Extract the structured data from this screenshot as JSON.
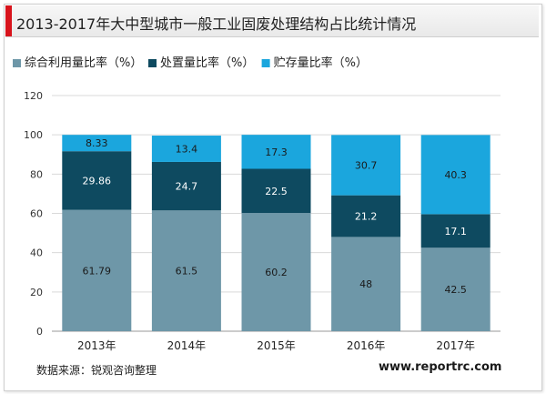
{
  "title": "2013-2017年大中型城市一般工业固废处理结构占比统计情况",
  "source": "数据来源：锐观咨询整理",
  "website": "www.reportrc.com",
  "chart_data": {
    "type": "bar",
    "stacked": true,
    "categories": [
      "2013年",
      "2014年",
      "2015年",
      "2016年",
      "2017年"
    ],
    "series": [
      {
        "name": "综合利用量比率（%）",
        "color": "#6e97a8",
        "values": [
          61.79,
          61.5,
          60.2,
          48,
          42.5
        ],
        "labels": [
          "61.79",
          "61.5",
          "60.2",
          "48",
          "42.5"
        ]
      },
      {
        "name": "处置量比率（%）",
        "color": "#0e4a60",
        "values": [
          29.86,
          24.7,
          22.5,
          21.2,
          17.1
        ],
        "labels": [
          "29.86",
          "24.7",
          "22.5",
          "21.2",
          "17.1"
        ]
      },
      {
        "name": "贮存量比率（%）",
        "color": "#1ba6dd",
        "values": [
          8.33,
          13.4,
          17.3,
          30.7,
          40.3
        ],
        "labels": [
          "8.33",
          "13.4",
          "17.3",
          "30.7",
          "40.3"
        ]
      }
    ],
    "ylim": [
      0,
      120
    ],
    "yticks": [
      "0",
      "20",
      "40",
      "60",
      "80",
      "100",
      "120"
    ],
    "grid": true,
    "legend": "top-left"
  }
}
